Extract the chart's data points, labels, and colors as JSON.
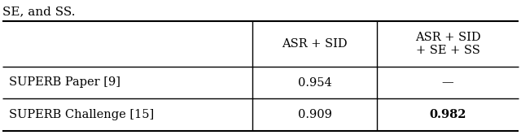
{
  "title_text": "SE, and SS.",
  "col_headers": [
    "",
    "ASR + SID",
    "ASR + SID\n+ SE + SS"
  ],
  "rows": [
    [
      "SUPERB Paper [9]",
      "0.954",
      "—"
    ],
    [
      "SUPERB Challenge [15]",
      "0.909",
      "0.982"
    ]
  ],
  "bold_cells": [
    [
      1,
      2
    ]
  ],
  "background_color": "#ffffff",
  "line_color": "#000000",
  "font_size": 10.5,
  "title_font_size": 11
}
